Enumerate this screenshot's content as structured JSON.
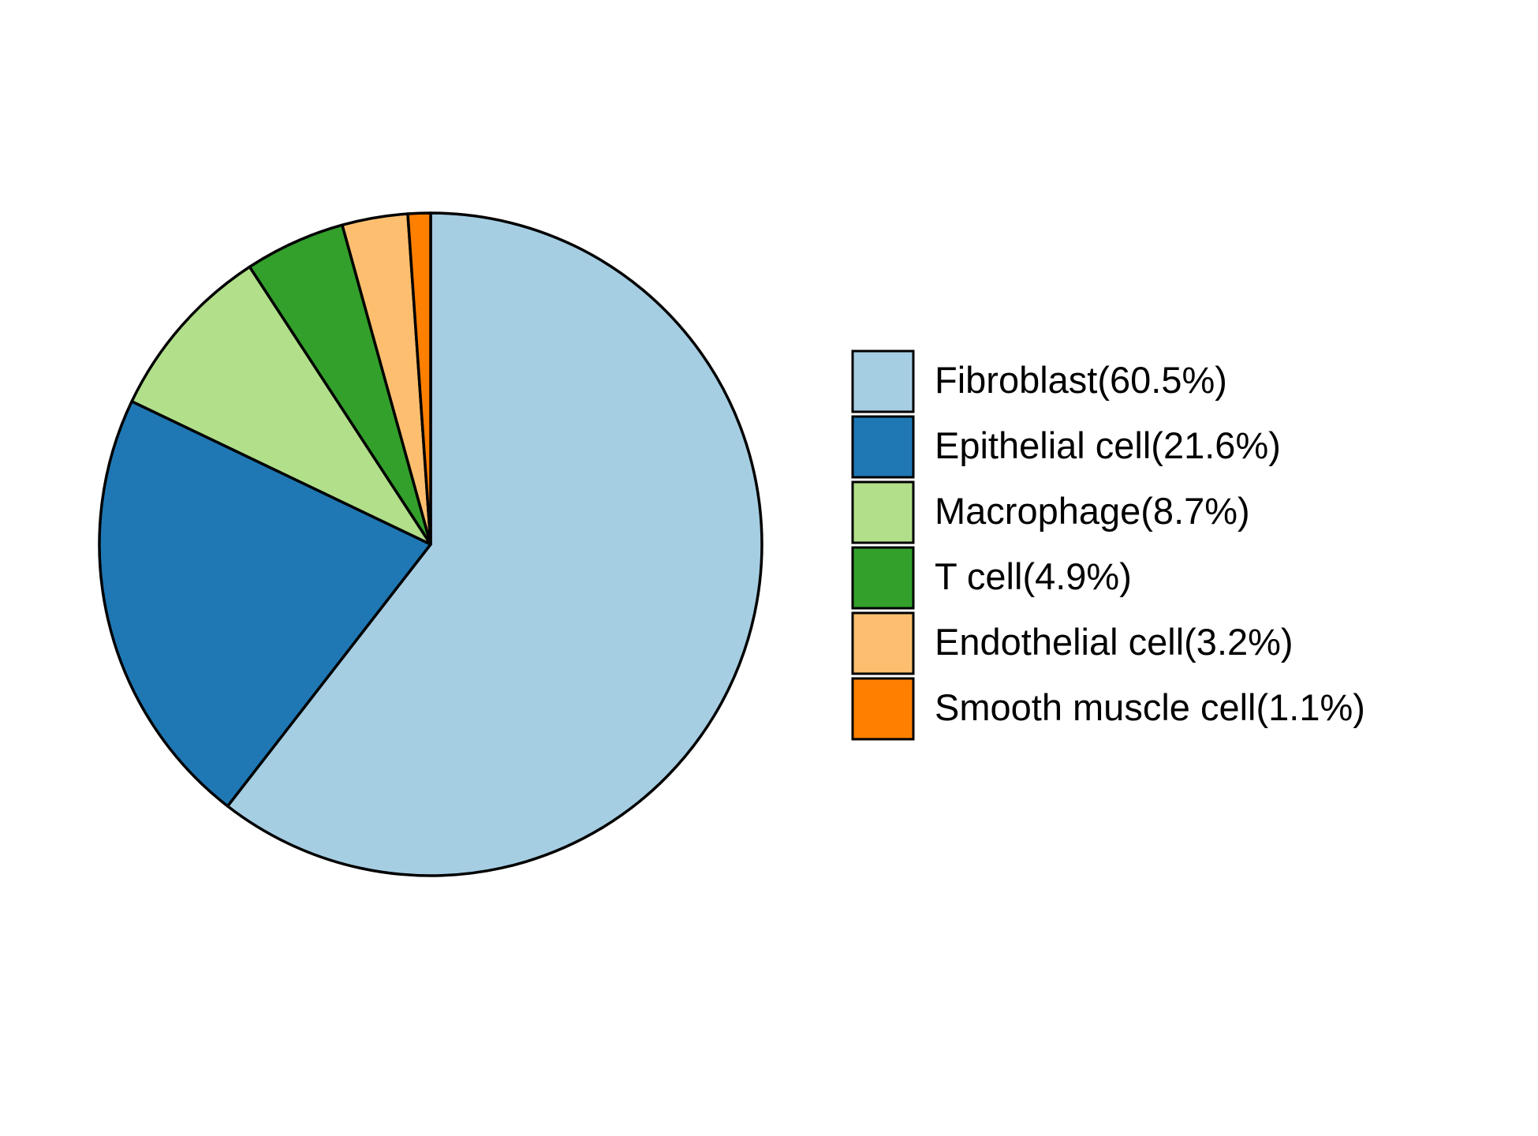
{
  "chart_data": {
    "type": "pie",
    "categories": [
      "Fibroblast(60.5%)",
      "Epithelial cell(21.6%)",
      "Macrophage(8.7%)",
      "T cell(4.9%)",
      "Endothelial cell(3.2%)",
      "Smooth muscle cell(1.1%)"
    ],
    "values": [
      60.5,
      21.6,
      8.7,
      4.9,
      3.2,
      1.1
    ],
    "colors": [
      "#a6cee3",
      "#1f78b4",
      "#b2df8a",
      "#33a02c",
      "#fdbf6f",
      "#ff7f00"
    ],
    "direction": "clockwise",
    "start": "top"
  }
}
